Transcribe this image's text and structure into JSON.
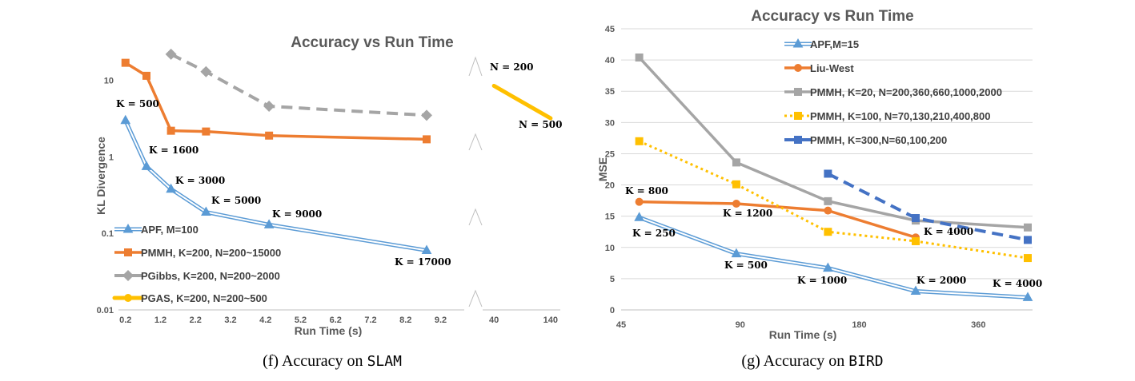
{
  "chart_data": [
    {
      "type": "line",
      "title": "Accuracy vs Run Time",
      "xlabel": "Run Time (s)",
      "ylabel": "KL Divergence",
      "yscale": "log",
      "ylim": [
        0.01,
        30
      ],
      "xaxis_segments": [
        {
          "ticks": [
            "0.2",
            "1.2",
            "2.2",
            "3.2",
            "4.2",
            "5.2",
            "6.2",
            "7.2",
            "8.2",
            "9.2"
          ],
          "range": [
            0,
            9.6
          ]
        },
        {
          "ticks": [
            "40",
            "140"
          ],
          "range": [
            20,
            160
          ]
        }
      ],
      "y_ticks": [
        "10",
        "1",
        "0.1",
        "0.01"
      ],
      "grid": false,
      "legend_position": "bottom-left",
      "caption_prefix": "(f) Accuracy on ",
      "caption_code": "SLAM",
      "series": [
        {
          "name": "APF, M=100",
          "color": "#5b9bd5",
          "style": "double-triangle",
          "x": [
            0.2,
            0.8,
            1.5,
            2.5,
            4.3,
            8.8
          ],
          "y": [
            3.0,
            0.75,
            0.38,
            0.19,
            0.13,
            0.06
          ]
        },
        {
          "name": "PMMH, K=200, N=200~15000",
          "color": "#ed7d31",
          "style": "solid-square",
          "x": [
            0.2,
            0.8,
            1.5,
            2.5,
            4.3,
            8.8
          ],
          "y": [
            17,
            11.5,
            2.2,
            2.15,
            1.9,
            1.7
          ]
        },
        {
          "name": "PGibbs, K=200, N=200~2000",
          "color": "#a5a5a5",
          "style": "dashed-diamond",
          "x": [
            1.5,
            2.5,
            4.3,
            8.8
          ],
          "y": [
            22,
            13,
            4.6,
            3.5
          ]
        },
        {
          "name": "PGAS, K=200, N=200~500",
          "color": "#ffc000",
          "style": "thick-circle",
          "x": [
            40,
            140
          ],
          "y": [
            8.5,
            3.2
          ]
        }
      ],
      "annotations": [
        {
          "text": "K = 500"
        },
        {
          "text": "K = 1600"
        },
        {
          "text": "K = 3000"
        },
        {
          "text": "K = 5000"
        },
        {
          "text": "K = 9000"
        },
        {
          "text": "K = 17000"
        },
        {
          "text": "N = 200"
        },
        {
          "text": "N = 500"
        }
      ]
    },
    {
      "type": "line",
      "title": "Accuracy vs Run Time",
      "xlabel": "Run Time (s)",
      "ylabel": "MSE",
      "xscale": "log",
      "xlim": [
        45,
        480
      ],
      "ylim": [
        0,
        45
      ],
      "x_ticks": [
        "45",
        "90",
        "180",
        "360"
      ],
      "y_ticks": [
        "0",
        "5",
        "10",
        "15",
        "20",
        "25",
        "30",
        "35",
        "40",
        "45"
      ],
      "grid": true,
      "legend_position": "top-right",
      "caption_prefix": "(g) Accuracy on ",
      "caption_code": "BIRD",
      "series": [
        {
          "name": "APF,M=15",
          "color": "#5b9bd5",
          "style": "double-triangle",
          "x": [
            50,
            88,
            150,
            250,
            480
          ],
          "y": [
            14.8,
            9.0,
            6.7,
            3.0,
            2.0
          ]
        },
        {
          "name": "Liu-West",
          "color": "#ed7d31",
          "style": "solid-circle",
          "x": [
            50,
            88,
            150,
            250
          ],
          "y": [
            17.3,
            17.0,
            15.9,
            11.6
          ]
        },
        {
          "name": "PMMH, K=20, N=200,360,660,1000,2000",
          "color": "#a5a5a5",
          "style": "solid-square",
          "x": [
            50,
            88,
            150,
            250,
            480
          ],
          "y": [
            40.4,
            23.6,
            17.4,
            14.3,
            13.2
          ]
        },
        {
          "name": "PMMH, K=100, N=70,130,210,400,800",
          "color": "#ffc000",
          "style": "dotted-square",
          "x": [
            50,
            88,
            150,
            250,
            480
          ],
          "y": [
            27.0,
            20.1,
            12.5,
            11.0,
            8.3
          ]
        },
        {
          "name": "PMMH, K=300,N=60,100,200",
          "color": "#4472c4",
          "style": "dashed-square",
          "x": [
            150,
            250,
            480
          ],
          "y": [
            21.8,
            14.7,
            11.2
          ]
        }
      ],
      "annotations": [
        {
          "text": "K = 800"
        },
        {
          "text": "K = 1200"
        },
        {
          "text": "K = 4000"
        },
        {
          "text": "K = 250"
        },
        {
          "text": "K = 500"
        },
        {
          "text": "K = 1000"
        },
        {
          "text": "K = 2000"
        },
        {
          "text": "K = 4000"
        }
      ]
    }
  ]
}
